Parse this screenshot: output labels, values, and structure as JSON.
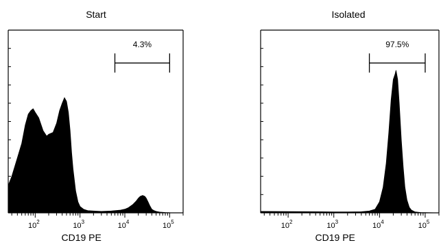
{
  "chart_data": [
    {
      "type": "area",
      "title": "Start",
      "xlabel": "CD19 PE",
      "ylabel": "",
      "x_scale": "log",
      "xlim": [
        25,
        200000
      ],
      "ylim": [
        0,
        1
      ],
      "x_ticks": [
        {
          "value": 100,
          "base": "10",
          "exp": "2"
        },
        {
          "value": 1000,
          "base": "10",
          "exp": "3"
        },
        {
          "value": 10000,
          "base": "10",
          "exp": "4"
        },
        {
          "value": 100000,
          "base": "10",
          "exp": "5"
        }
      ],
      "gate": {
        "label": "4.3%",
        "x_range": [
          6000,
          100000
        ],
        "y": 0.82
      },
      "series": [
        {
          "x": [
            25,
            30,
            40,
            50,
            60,
            70,
            80,
            90,
            100,
            120,
            150,
            180,
            200,
            250,
            300,
            350,
            400,
            450,
            500,
            550,
            600,
            650,
            700,
            800,
            900,
            1000,
            1200,
            1500,
            2000,
            3000,
            5000,
            8000,
            10000,
            12000,
            15000,
            18000,
            20000,
            22000,
            25000,
            28000,
            30000,
            33000,
            36000,
            40000,
            45000,
            50000,
            60000,
            80000,
            100000
          ],
          "y": [
            0.15,
            0.2,
            0.3,
            0.38,
            0.48,
            0.54,
            0.56,
            0.57,
            0.55,
            0.52,
            0.45,
            0.42,
            0.43,
            0.44,
            0.49,
            0.56,
            0.6,
            0.63,
            0.61,
            0.55,
            0.45,
            0.33,
            0.24,
            0.12,
            0.06,
            0.035,
            0.02,
            0.012,
            0.01,
            0.008,
            0.01,
            0.015,
            0.02,
            0.028,
            0.045,
            0.065,
            0.08,
            0.09,
            0.095,
            0.09,
            0.08,
            0.06,
            0.04,
            0.02,
            0.012,
            0.008,
            0.004,
            0.002,
            0.001
          ]
        }
      ]
    },
    {
      "type": "area",
      "title": "Isolated",
      "xlabel": "CD19 PE",
      "ylabel": "",
      "x_scale": "log",
      "xlim": [
        25,
        200000
      ],
      "ylim": [
        0,
        1
      ],
      "x_ticks": [
        {
          "value": 100,
          "base": "10",
          "exp": "2"
        },
        {
          "value": 1000,
          "base": "10",
          "exp": "3"
        },
        {
          "value": 10000,
          "base": "10",
          "exp": "4"
        },
        {
          "value": 100000,
          "base": "10",
          "exp": "5"
        }
      ],
      "gate": {
        "label": "97.5%",
        "x_range": [
          6000,
          100000
        ],
        "y": 0.82
      },
      "series": [
        {
          "x": [
            25,
            100,
            500,
            1000,
            2000,
            4000,
            6000,
            8000,
            10000,
            12000,
            14000,
            16000,
            18000,
            20000,
            22000,
            23000,
            25000,
            27000,
            30000,
            33000,
            36000,
            40000,
            45000,
            50000,
            60000,
            80000,
            100000,
            150000
          ],
          "y": [
            0.008,
            0.007,
            0.006,
            0.005,
            0.005,
            0.006,
            0.01,
            0.02,
            0.06,
            0.14,
            0.27,
            0.44,
            0.62,
            0.73,
            0.76,
            0.78,
            0.73,
            0.6,
            0.4,
            0.25,
            0.14,
            0.07,
            0.03,
            0.015,
            0.005,
            0.002,
            0.001,
            0.0005
          ]
        }
      ]
    }
  ]
}
